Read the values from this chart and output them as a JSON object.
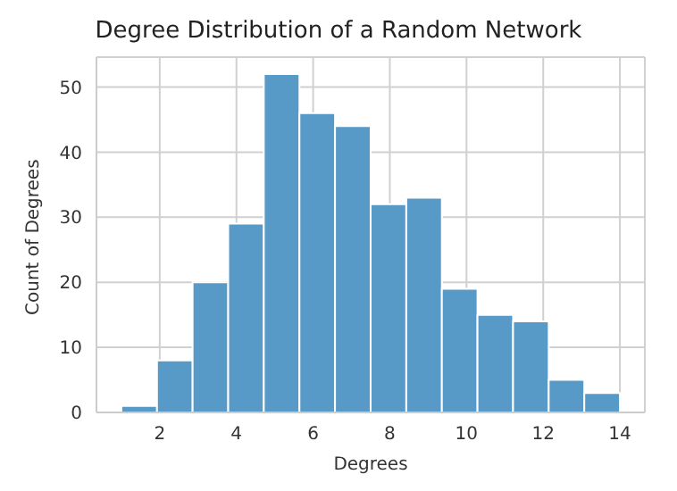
{
  "chart_data": {
    "type": "histogram",
    "title": "Degree Distribution of a Random Network",
    "xlabel": "Degrees",
    "ylabel": "Count of Degrees",
    "bins": [
      1,
      1.929,
      2.857,
      3.786,
      4.714,
      5.643,
      6.571,
      7.5,
      8.429,
      9.357,
      10.286,
      11.214,
      12.143,
      13.071,
      14
    ],
    "values": [
      1,
      8,
      20,
      29,
      52,
      46,
      44,
      32,
      33,
      19,
      15,
      14,
      5,
      3
    ],
    "color": "#5799c7",
    "xlim": [
      0.35,
      14.65
    ],
    "xticks": [
      2,
      4,
      6,
      8,
      10,
      12,
      14
    ],
    "ylim": [
      0,
      54.6
    ],
    "yticks": [
      0,
      10,
      20,
      30,
      40,
      50
    ],
    "grid": true
  }
}
